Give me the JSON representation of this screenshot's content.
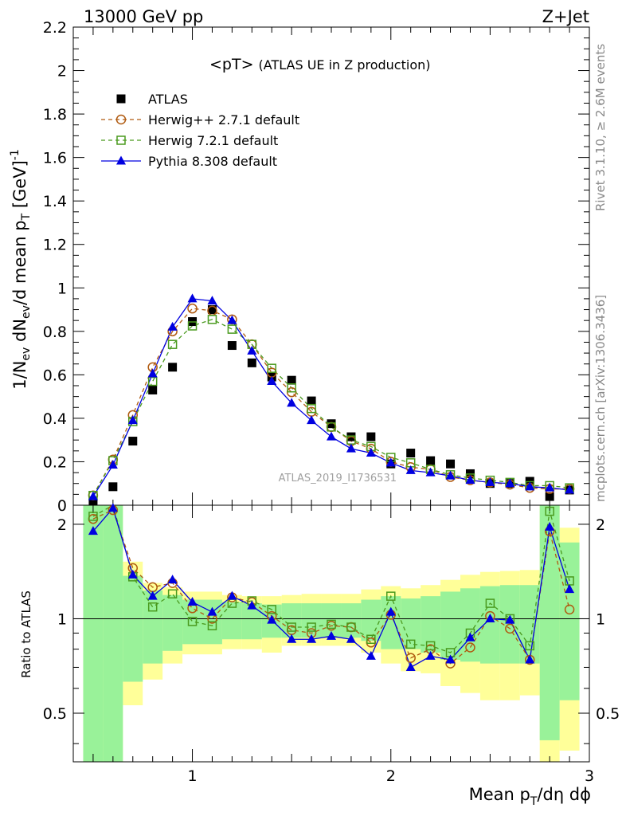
{
  "header": {
    "left": "13000 GeV pp",
    "right": "Z+Jet"
  },
  "side_labels": {
    "rivet": "Rivet 3.1.10, ≥ 2.6M events",
    "mcplots": "mcplots.cern.ch [arXiv:1306.3436]"
  },
  "chart_data": {
    "type": "scatter",
    "title_main": "<pT>",
    "title_sub": "(ATLAS UE in Z production)",
    "analysis_id": "ATLAS_2019_I1736531",
    "xlabel": "Mean p_T/dη dϕ",
    "ylabel": "1/N_ev dN_ev/d mean p_T [GeV]^-1",
    "ratio_ylabel": "Ratio to ATLAS",
    "xlim": [
      0.4,
      3.0
    ],
    "ylim": [
      0,
      2.2
    ],
    "ratio_ylim": [
      0.35,
      2.3
    ],
    "ratio_log_scale": true,
    "legend_position": "top-left",
    "x_ticks": [
      "1",
      "2",
      "3"
    ],
    "y_ticks": [
      "0",
      "0.2",
      "0.4",
      "0.6",
      "0.8",
      "1",
      "1.2",
      "1.4",
      "1.6",
      "1.8",
      "2",
      "2.2"
    ],
    "ratio_y_ticks": [
      "0.5",
      "1",
      "2"
    ],
    "x": [
      0.5,
      0.6,
      0.7,
      0.8,
      0.9,
      1.0,
      1.1,
      1.2,
      1.3,
      1.4,
      1.5,
      1.6,
      1.7,
      1.8,
      1.9,
      2.0,
      2.1,
      2.2,
      2.3,
      2.4,
      2.5,
      2.6,
      2.7,
      2.8,
      2.9
    ],
    "series": [
      {
        "name": "ATLAS",
        "color": "#000000",
        "marker": "square",
        "values": [
          0.02,
          0.085,
          0.295,
          0.53,
          0.635,
          0.845,
          0.9,
          0.735,
          0.655,
          0.59,
          0.575,
          0.48,
          0.375,
          0.315,
          0.315,
          0.19,
          0.24,
          0.205,
          0.19,
          0.145,
          0.1,
          0.1,
          0.11,
          0.04,
          0.07
        ]
      },
      {
        "name": "Herwig++ 2.7.1 default",
        "color": "#b05a10",
        "marker": "circle",
        "values": [
          0.045,
          0.21,
          0.415,
          0.635,
          0.8,
          0.905,
          0.895,
          0.855,
          0.74,
          0.61,
          0.52,
          0.43,
          0.36,
          0.295,
          0.26,
          0.2,
          0.175,
          0.165,
          0.13,
          0.115,
          0.105,
          0.095,
          0.08,
          0.075,
          0.075
        ]
      },
      {
        "name": "Herwig 7.2.1 default",
        "color": "#4a9a1e",
        "marker": "open-square",
        "values": [
          0.045,
          0.205,
          0.385,
          0.57,
          0.74,
          0.825,
          0.855,
          0.81,
          0.74,
          0.63,
          0.54,
          0.445,
          0.36,
          0.3,
          0.27,
          0.22,
          0.195,
          0.165,
          0.14,
          0.125,
          0.115,
          0.105,
          0.09,
          0.09,
          0.08
        ]
      },
      {
        "name": "Pythia 8.308 default",
        "color": "#0000e0",
        "marker": "triangle",
        "values": [
          0.04,
          0.185,
          0.39,
          0.605,
          0.82,
          0.95,
          0.94,
          0.85,
          0.71,
          0.57,
          0.47,
          0.39,
          0.315,
          0.26,
          0.24,
          0.195,
          0.16,
          0.15,
          0.135,
          0.115,
          0.105,
          0.1,
          0.085,
          0.08,
          0.07
        ]
      }
    ],
    "ratio_series": [
      {
        "name": "Herwig++ 2.7.1 default",
        "values": [
          2.08,
          2.22,
          1.45,
          1.26,
          1.3,
          1.08,
          1.0,
          1.17,
          1.13,
          1.02,
          0.92,
          0.9,
          0.95,
          0.94,
          0.84,
          1.03,
          0.75,
          0.8,
          0.72,
          0.81,
          1.02,
          0.93,
          0.74,
          1.9,
          1.07
        ]
      },
      {
        "name": "Herwig 7.2.1 default",
        "values": [
          2.12,
          2.35,
          1.36,
          1.09,
          1.2,
          0.98,
          0.95,
          1.12,
          1.14,
          1.07,
          0.94,
          0.94,
          0.96,
          0.94,
          0.86,
          1.18,
          0.83,
          0.82,
          0.78,
          0.9,
          1.12,
          1.0,
          0.82,
          2.2,
          1.32
        ]
      },
      {
        "name": "Pythia 8.308 default",
        "values": [
          1.9,
          2.25,
          1.38,
          1.18,
          1.33,
          1.13,
          1.05,
          1.18,
          1.1,
          0.99,
          0.86,
          0.86,
          0.88,
          0.86,
          0.76,
          1.05,
          0.7,
          0.76,
          0.74,
          0.87,
          1.0,
          0.99,
          0.74,
          1.96,
          1.24
        ]
      }
    ],
    "ratio_bands": {
      "edges": [
        0.45,
        0.55,
        0.65,
        0.75,
        0.85,
        0.95,
        1.05,
        1.15,
        1.25,
        1.35,
        1.45,
        1.55,
        1.65,
        1.75,
        1.85,
        1.95,
        2.05,
        2.15,
        2.25,
        2.35,
        2.45,
        2.55,
        2.65,
        2.75,
        2.85,
        2.95
      ],
      "green_lo": [
        0.28,
        0.28,
        0.63,
        0.72,
        0.79,
        0.83,
        0.83,
        0.86,
        0.86,
        0.87,
        0.87,
        0.87,
        0.87,
        0.87,
        0.85,
        0.8,
        0.8,
        0.78,
        0.74,
        0.73,
        0.72,
        0.72,
        0.72,
        0.41,
        0.55
      ],
      "green_hi": [
        2.35,
        2.35,
        1.37,
        1.23,
        1.19,
        1.15,
        1.15,
        1.13,
        1.12,
        1.11,
        1.12,
        1.12,
        1.12,
        1.12,
        1.15,
        1.18,
        1.16,
        1.18,
        1.22,
        1.25,
        1.27,
        1.28,
        1.28,
        2.35,
        1.75
      ]
    },
    "ratio_bands_yellow": {
      "lo": [
        0.28,
        0.28,
        0.53,
        0.64,
        0.72,
        0.77,
        0.77,
        0.8,
        0.8,
        0.78,
        0.82,
        0.82,
        0.82,
        0.82,
        0.78,
        0.72,
        0.68,
        0.67,
        0.61,
        0.58,
        0.55,
        0.55,
        0.57,
        0.3,
        0.38
      ],
      "hi": [
        2.35,
        2.35,
        1.52,
        1.3,
        1.26,
        1.22,
        1.22,
        1.19,
        1.18,
        1.18,
        1.19,
        1.2,
        1.2,
        1.2,
        1.24,
        1.27,
        1.25,
        1.28,
        1.33,
        1.38,
        1.41,
        1.42,
        1.43,
        2.35,
        1.95
      ]
    }
  }
}
